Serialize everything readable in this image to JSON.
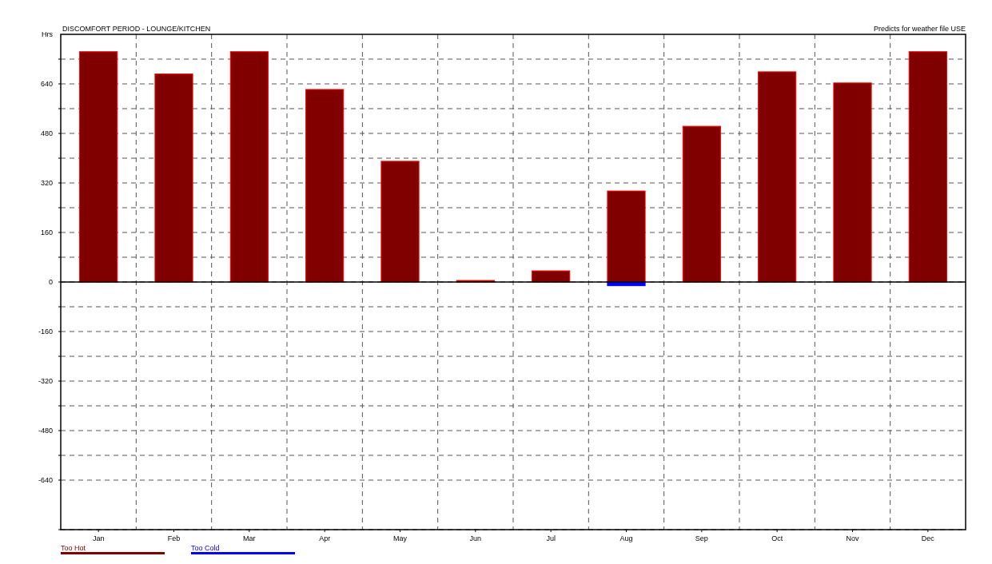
{
  "chart_data": {
    "type": "bar",
    "title": "DISCOMFORT PERIOD - LOUNGE/KITCHEN",
    "subtitle": "Predicts for weather file USE",
    "ylabel": "Hrs",
    "categories": [
      "Jan",
      "Feb",
      "Mar",
      "Apr",
      "May",
      "Jun",
      "Jul",
      "Aug",
      "Sep",
      "Oct",
      "Nov",
      "Dec"
    ],
    "series": [
      {
        "name": "Too Hot",
        "color": "#800000",
        "values": [
          744,
          672,
          744,
          622,
          390,
          5,
          36,
          294,
          503,
          679,
          643,
          744
        ]
      },
      {
        "name": "Too Cold",
        "color": "#0000ff",
        "values": [
          null,
          null,
          null,
          null,
          null,
          null,
          null,
          -12,
          null,
          null,
          null,
          null
        ]
      }
    ],
    "stacked": true,
    "ylim": [
      -800,
      800
    ],
    "yticks": [
      {
        "value": -800,
        "label": null
      },
      -640,
      {
        "value": -560,
        "label": null
      },
      -480,
      {
        "value": -400,
        "label": null
      },
      -320,
      {
        "value": -240,
        "label": null
      },
      -160,
      {
        "value": -80,
        "label": null
      },
      0,
      {
        "value": 80,
        "label": null
      },
      160,
      {
        "value": 240,
        "label": null
      },
      320,
      {
        "value": 400,
        "label": null
      },
      480,
      {
        "value": 560,
        "label": null
      },
      640,
      {
        "value": 720,
        "label": null
      }
    ],
    "grid": true,
    "legend": "bottom left"
  }
}
